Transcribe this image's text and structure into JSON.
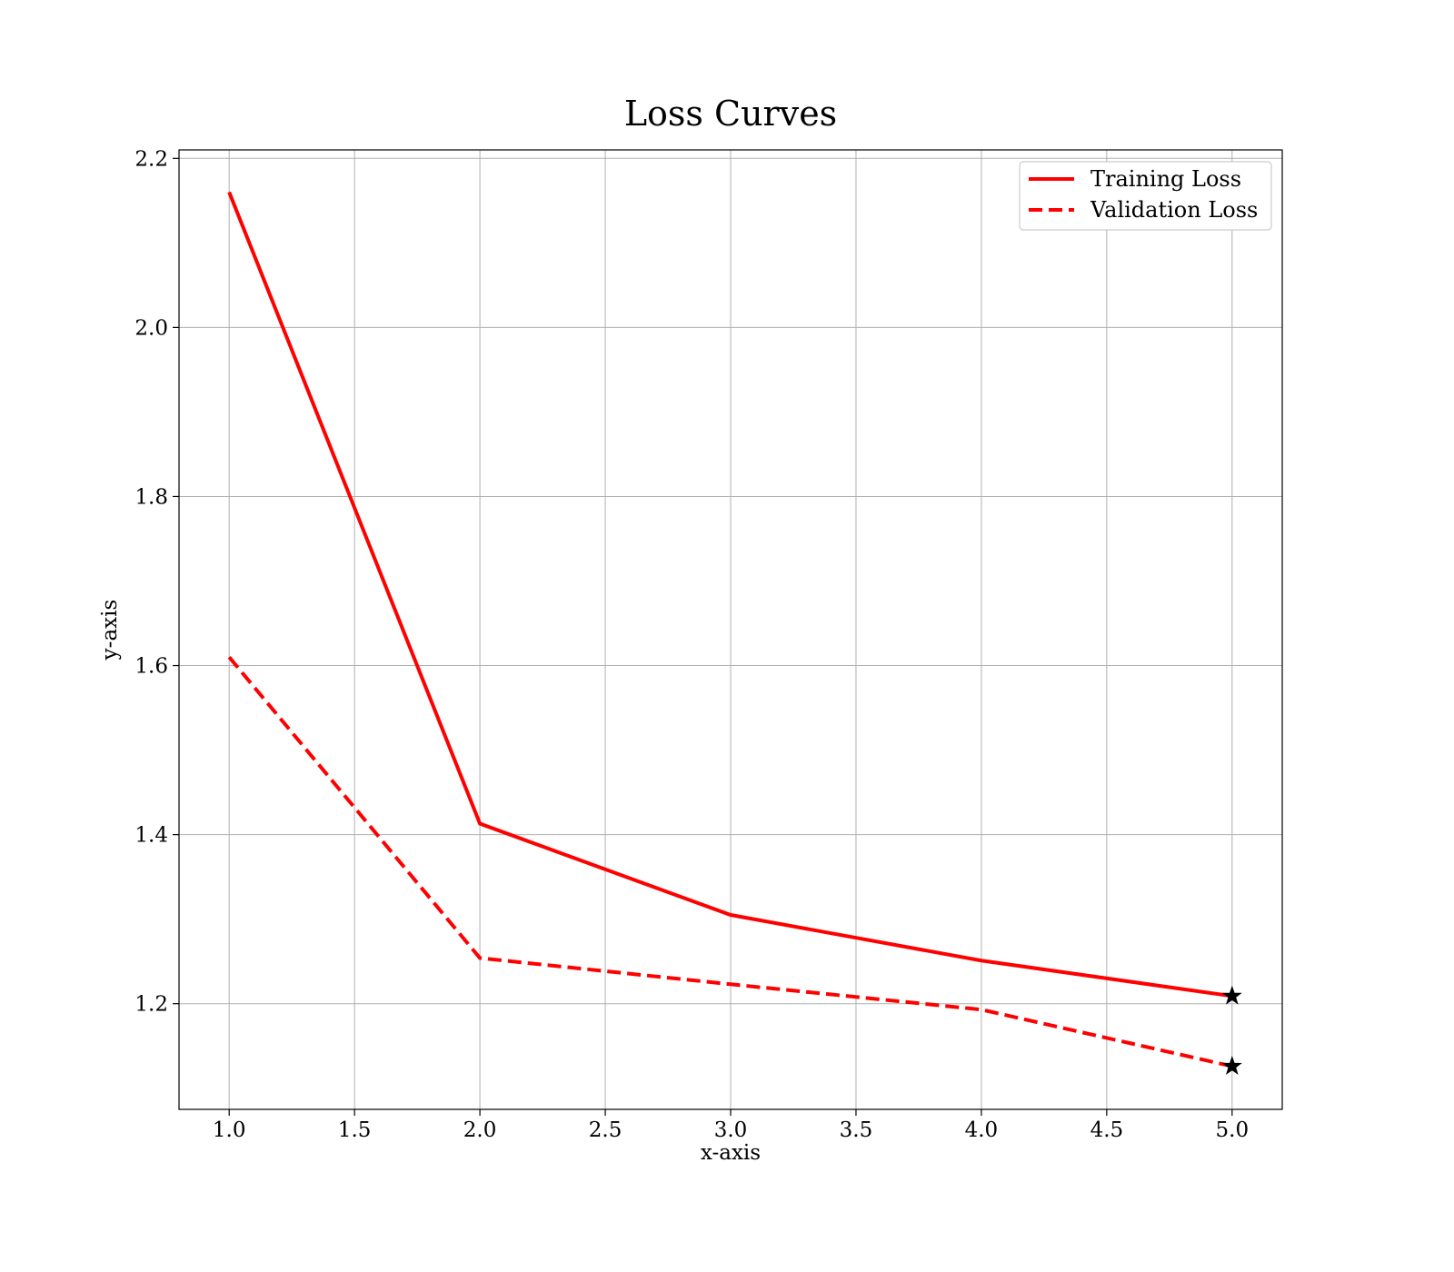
{
  "chart_data": {
    "type": "line",
    "title": "Loss Curves",
    "xlabel": "x-axis",
    "ylabel": "y-axis",
    "xlim": [
      0.8,
      5.2
    ],
    "ylim": [
      1.075,
      2.21
    ],
    "xticks": [
      1.0,
      1.5,
      2.0,
      2.5,
      3.0,
      3.5,
      4.0,
      4.5,
      5.0
    ],
    "yticks": [
      1.2,
      1.4,
      1.6,
      1.8,
      2.0,
      2.2
    ],
    "grid": true,
    "legend_position": "top-right",
    "x": [
      1,
      2,
      3,
      4,
      5
    ],
    "series": [
      {
        "name": "Training Loss",
        "values": [
          2.16,
          1.413,
          1.305,
          1.251,
          1.209
        ],
        "color": "#ff0000",
        "style": "solid"
      },
      {
        "name": "Validation Loss",
        "values": [
          1.61,
          1.254,
          1.223,
          1.193,
          1.126
        ],
        "color": "#ff0000",
        "style": "dashed"
      }
    ],
    "final_point_marker": "star",
    "marker_color": "#000000"
  }
}
